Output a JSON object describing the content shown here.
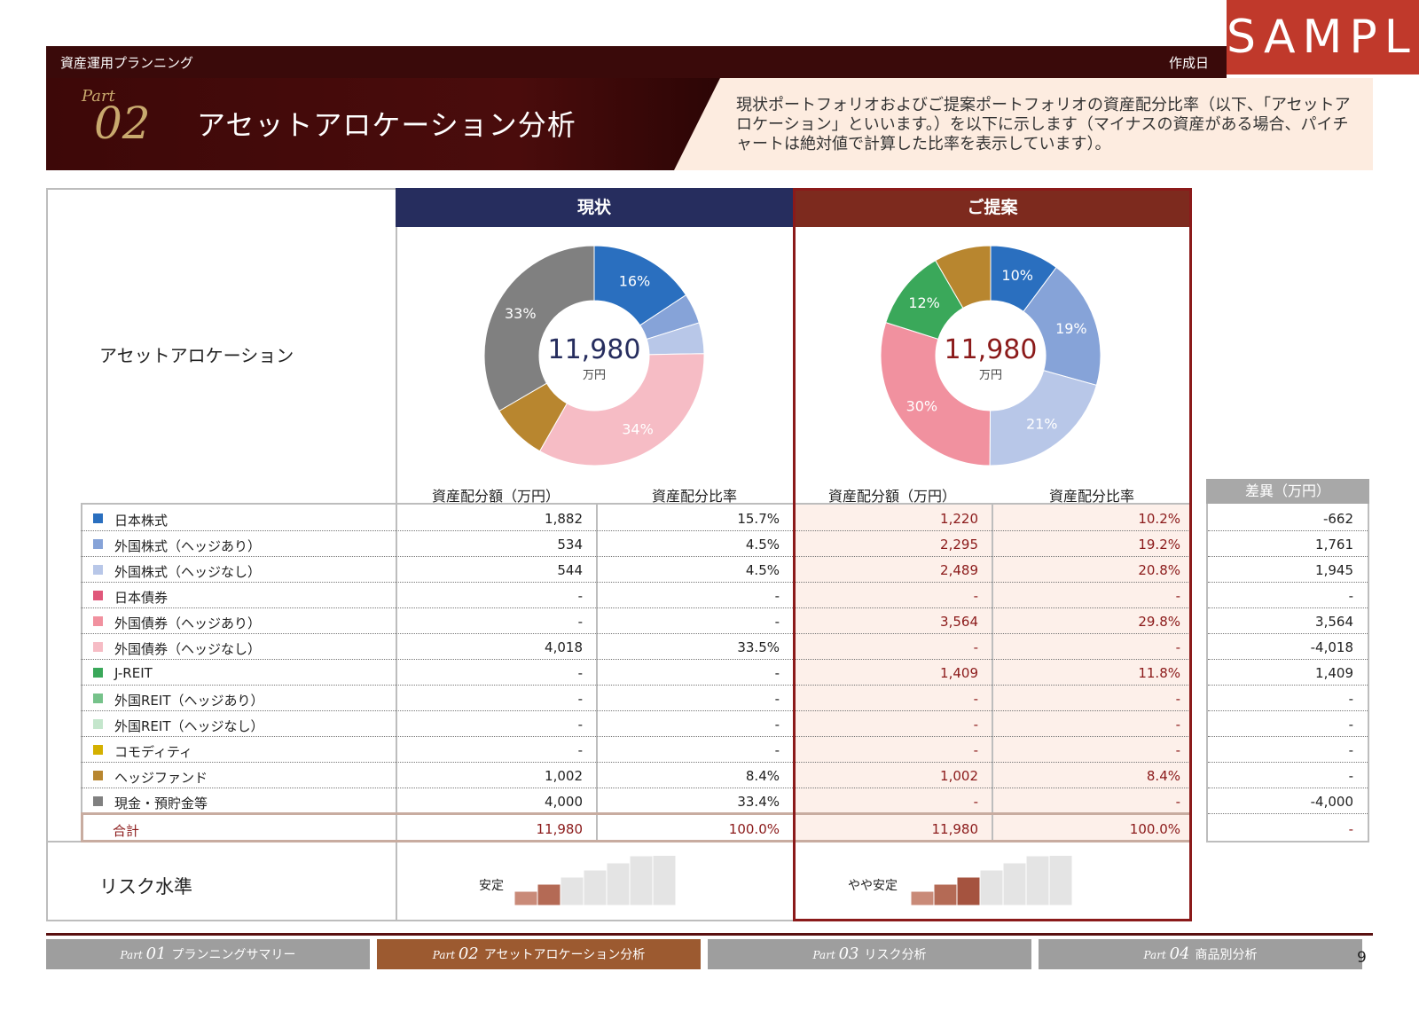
{
  "badge": "SAMPLE",
  "header": {
    "section": "資産運用プランニング",
    "date_label": "作成日",
    "part_word": "Part",
    "part_num": "02",
    "title": "アセットアロケーション分析",
    "description": "現状ポートフォリオおよびご提案ポートフォリオの資産配分比率（以下、「アセットアロケーション」といいます。）を以下に示します（マイナスの資産がある場合、パイチャートは絶対値で計算した比率を表示しています）。"
  },
  "labels": {
    "asset_allocation": "アセットアロケーション",
    "risk_level": "リスク水準",
    "current": "現状",
    "proposal": "ご提案",
    "amount_col": "資産配分額（万円）",
    "ratio_col": "資産配分比率",
    "diff_col": "差異（万円）",
    "total_unit": "万円"
  },
  "colors": {
    "日本株式": "#2a6fbf",
    "外国株式（ヘッジあり）": "#86a3d8",
    "外国株式（ヘッジなし）": "#b8c7e8",
    "日本債券": "#e0577a",
    "外国債券（ヘッジあり）": "#f1919f",
    "外国債券（ヘッジなし）": "#f6bcc5",
    "J-REIT": "#3aa85a",
    "外国REIT（ヘッジあり）": "#76c28a",
    "外国REIT（ヘッジなし）": "#c4e6cc",
    "コモディティ": "#d4b000",
    "ヘッジファンド": "#b8862f",
    "現金・預貯金等": "#808080"
  },
  "chart_data": [
    {
      "type": "pie",
      "name": "現状",
      "total": "11,980",
      "categories": [
        "日本株式",
        "外国株式（ヘッジあり）",
        "外国株式（ヘッジなし）",
        "外国債券（ヘッジなし）",
        "ヘッジファンド",
        "現金・預貯金等"
      ],
      "values": [
        1882,
        534,
        544,
        4018,
        1002,
        4000
      ],
      "labels": [
        "16%",
        "",
        "",
        "34%",
        "",
        "33%"
      ]
    },
    {
      "type": "pie",
      "name": "ご提案",
      "total": "11,980",
      "categories": [
        "日本株式",
        "外国株式（ヘッジあり）",
        "外国株式（ヘッジなし）",
        "外国債券（ヘッジあり）",
        "J-REIT",
        "ヘッジファンド"
      ],
      "values": [
        1220,
        2295,
        2489,
        3564,
        1409,
        1002
      ],
      "labels": [
        "10%",
        "19%",
        "21%",
        "30%",
        "12%",
        ""
      ]
    }
  ],
  "rows": [
    {
      "name": "日本株式",
      "cur_amt": "1,882",
      "cur_pct": "15.7%",
      "prop_amt": "1,220",
      "prop_pct": "10.2%",
      "diff": "-662"
    },
    {
      "name": "外国株式（ヘッジあり）",
      "cur_amt": "534",
      "cur_pct": "4.5%",
      "prop_amt": "2,295",
      "prop_pct": "19.2%",
      "diff": "1,761"
    },
    {
      "name": "外国株式（ヘッジなし）",
      "cur_amt": "544",
      "cur_pct": "4.5%",
      "prop_amt": "2,489",
      "prop_pct": "20.8%",
      "diff": "1,945"
    },
    {
      "name": "日本債券",
      "cur_amt": "-",
      "cur_pct": "-",
      "prop_amt": "-",
      "prop_pct": "-",
      "diff": "-"
    },
    {
      "name": "外国債券（ヘッジあり）",
      "cur_amt": "-",
      "cur_pct": "-",
      "prop_amt": "3,564",
      "prop_pct": "29.8%",
      "diff": "3,564"
    },
    {
      "name": "外国債券（ヘッジなし）",
      "cur_amt": "4,018",
      "cur_pct": "33.5%",
      "prop_amt": "-",
      "prop_pct": "-",
      "diff": "-4,018"
    },
    {
      "name": "J-REIT",
      "cur_amt": "-",
      "cur_pct": "-",
      "prop_amt": "1,409",
      "prop_pct": "11.8%",
      "diff": "1,409"
    },
    {
      "name": "外国REIT（ヘッジあり）",
      "cur_amt": "-",
      "cur_pct": "-",
      "prop_amt": "-",
      "prop_pct": "-",
      "diff": "-"
    },
    {
      "name": "外国REIT（ヘッジなし）",
      "cur_amt": "-",
      "cur_pct": "-",
      "prop_amt": "-",
      "prop_pct": "-",
      "diff": "-"
    },
    {
      "name": "コモディティ",
      "cur_amt": "-",
      "cur_pct": "-",
      "prop_amt": "-",
      "prop_pct": "-",
      "diff": "-"
    },
    {
      "name": "ヘッジファンド",
      "cur_amt": "1,002",
      "cur_pct": "8.4%",
      "prop_amt": "1,002",
      "prop_pct": "8.4%",
      "diff": "-"
    },
    {
      "name": "現金・預貯金等",
      "cur_amt": "4,000",
      "cur_pct": "33.4%",
      "prop_amt": "-",
      "prop_pct": "-",
      "diff": "-4,000"
    }
  ],
  "total_row": {
    "name": "合計",
    "cur_amt": "11,980",
    "cur_pct": "100.0%",
    "prop_amt": "11,980",
    "prop_pct": "100.0%",
    "diff": "-"
  },
  "risk": {
    "current": {
      "text": "安定",
      "level": 2,
      "steps": 7
    },
    "proposal": {
      "text": "やや安定",
      "level": 3,
      "steps": 7
    }
  },
  "nav": [
    {
      "part_word": "Part",
      "part_num": "01",
      "label": "プランニングサマリー",
      "active": false
    },
    {
      "part_word": "Part",
      "part_num": "02",
      "label": "アセットアロケーション分析",
      "active": true
    },
    {
      "part_word": "Part",
      "part_num": "03",
      "label": "リスク分析",
      "active": false
    },
    {
      "part_word": "Part",
      "part_num": "04",
      "label": "商品別分析",
      "active": false
    }
  ],
  "page_number": "9"
}
